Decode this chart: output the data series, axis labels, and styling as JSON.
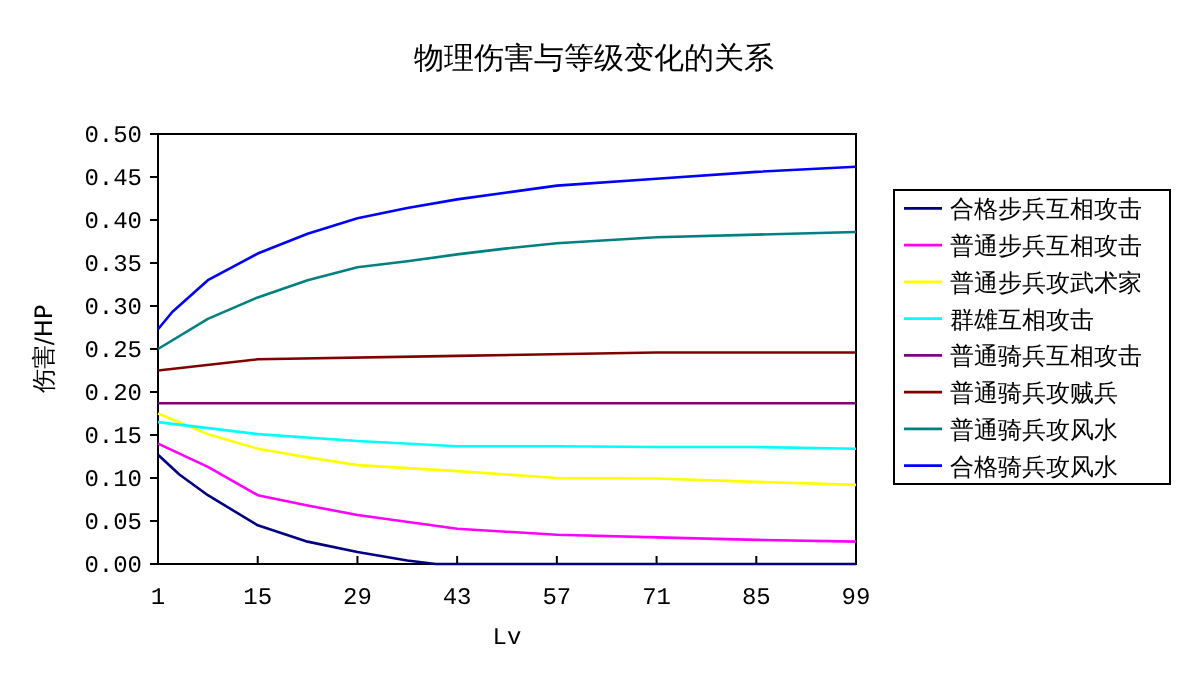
{
  "chart_data": {
    "type": "line",
    "title": "物理伤害与等级变化的关系",
    "xlabel": "Lv",
    "ylabel": "伤害/HP",
    "xlim": [
      1,
      99
    ],
    "xticks": [
      1,
      15,
      29,
      43,
      57,
      71,
      85,
      99
    ],
    "ylim": [
      0,
      0.5
    ],
    "yticks": [
      {
        "value": 0,
        "label": "0.00"
      },
      {
        "value": 0.05,
        "label": "0.05"
      },
      {
        "value": 0.1,
        "label": "0.10"
      },
      {
        "value": 0.15,
        "label": "0.15"
      },
      {
        "value": 0.2,
        "label": "0.20"
      },
      {
        "value": 0.25,
        "label": "0.25"
      },
      {
        "value": 0.3,
        "label": "0.30"
      },
      {
        "value": 0.35,
        "label": "0.35"
      },
      {
        "value": 0.4,
        "label": "0.40"
      },
      {
        "value": 0.45,
        "label": "0.45"
      },
      {
        "value": 0.5,
        "label": "0.50"
      }
    ],
    "legend": "right",
    "marker": "none",
    "line_style": "solid",
    "series": [
      {
        "name": "合格步兵互相攻击",
        "color": "#000080",
        "x": [
          1,
          4,
          8,
          15,
          22,
          29,
          36,
          40,
          57,
          71,
          85,
          99
        ],
        "values": [
          0.127,
          0.104,
          0.08,
          0.045,
          0.026,
          0.014,
          0.004,
          0,
          0,
          0,
          0,
          0
        ]
      },
      {
        "name": "普通步兵互相攻击",
        "color": "#ff00ff",
        "x": [
          1,
          8,
          15,
          22,
          29,
          43,
          57,
          71,
          85,
          99
        ],
        "values": [
          0.14,
          0.113,
          0.08,
          0.068,
          0.057,
          0.041,
          0.034,
          0.031,
          0.028,
          0.026
        ]
      },
      {
        "name": "普通步兵攻武术家",
        "color": "#ffff00",
        "x": [
          1,
          8,
          15,
          22,
          29,
          43,
          57,
          71,
          85,
          99
        ],
        "values": [
          0.175,
          0.151,
          0.134,
          0.124,
          0.115,
          0.108,
          0.1,
          0.0995,
          0.0955,
          0.092
        ]
      },
      {
        "name": "群雄互相攻击",
        "color": "#00ffff",
        "x": [
          1,
          8,
          15,
          29,
          43,
          57,
          71,
          85,
          99
        ],
        "values": [
          0.165,
          0.158,
          0.151,
          0.143,
          0.137,
          0.137,
          0.136,
          0.136,
          0.134
        ]
      },
      {
        "name": "普通骑兵互相攻击",
        "color": "#800080",
        "x": [
          1,
          99
        ],
        "values": [
          0.187,
          0.187
        ]
      },
      {
        "name": "普通骑兵攻贼兵",
        "color": "#800000",
        "x": [
          1,
          15,
          43,
          71,
          99
        ],
        "values": [
          0.225,
          0.238,
          0.242,
          0.246,
          0.246
        ]
      },
      {
        "name": "普通骑兵攻风水",
        "color": "#008080",
        "x": [
          1,
          8,
          15,
          22,
          29,
          36,
          43,
          50,
          57,
          71,
          85,
          99
        ],
        "values": [
          0.25,
          0.285,
          0.31,
          0.33,
          0.345,
          0.352,
          0.36,
          0.367,
          0.373,
          0.38,
          0.383,
          0.386
        ]
      },
      {
        "name": "合格骑兵攻风水",
        "color": "#0000ff",
        "x": [
          1,
          3,
          8,
          15,
          22,
          29,
          36,
          43,
          50,
          57,
          71,
          85,
          99
        ],
        "values": [
          0.273,
          0.293,
          0.33,
          0.361,
          0.384,
          0.402,
          0.414,
          0.424,
          0.432,
          0.44,
          0.448,
          0.456,
          0.462
        ]
      }
    ]
  }
}
